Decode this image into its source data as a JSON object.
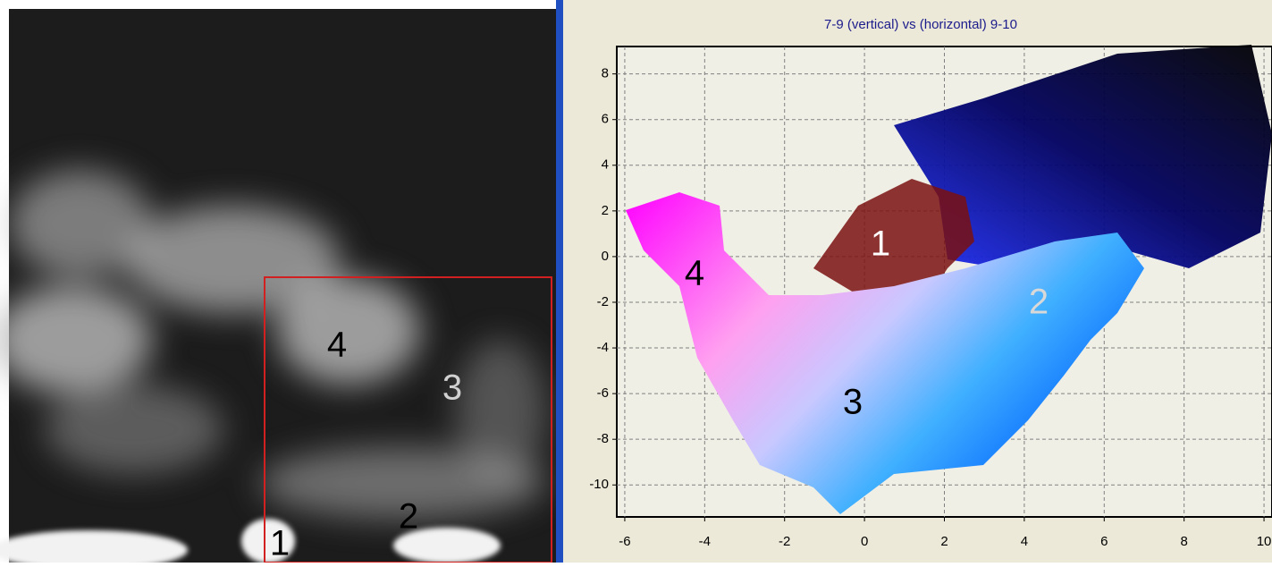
{
  "chart_data": {
    "type": "scatter",
    "title": "7-9 (vertical) vs (horizontal) 9-10",
    "xlim": [
      -6.2,
      10.2
    ],
    "xticks": [
      -6,
      -4,
      -2,
      0,
      2,
      4,
      6,
      8,
      10
    ],
    "ylim": [
      -11.4,
      9.2
    ],
    "yticks": [
      -10,
      -8,
      -6,
      -4,
      -2,
      0,
      2,
      4,
      6,
      8
    ],
    "grid": true,
    "annotations": [
      "1",
      "2",
      "3",
      "4"
    ]
  },
  "image_labels": [
    "4",
    "3",
    "2",
    "1"
  ]
}
